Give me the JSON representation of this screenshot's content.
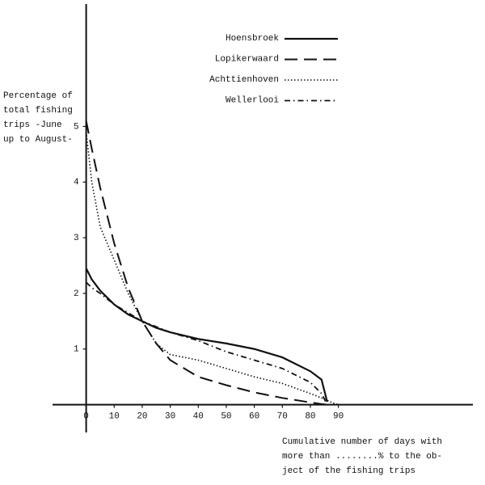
{
  "chart_data": {
    "type": "line",
    "y_label": [
      "Percentage of",
      "total fishing",
      "trips -June",
      "up to August-"
    ],
    "x_label": [
      "Cumulative  number of days with",
      "more than ........% to the ob-",
      "ject of the fishing trips"
    ],
    "x": [
      0,
      2,
      5,
      10,
      15,
      20,
      25,
      30,
      40,
      50,
      60,
      70,
      80,
      84,
      86,
      88,
      90
    ],
    "series": [
      {
        "name": "Hoensbroek",
        "color": "#111111",
        "style": "solid",
        "values": [
          2.45,
          2.25,
          2.05,
          1.8,
          1.62,
          1.5,
          1.38,
          1.3,
          1.18,
          1.1,
          1.0,
          0.85,
          0.6,
          0.45,
          0.05,
          null,
          null
        ]
      },
      {
        "name": "Lopikerwaard",
        "color": "#111111",
        "style": "dashed",
        "values": [
          5.1,
          4.6,
          3.9,
          2.9,
          2.1,
          1.5,
          1.1,
          0.8,
          0.5,
          0.35,
          0.22,
          0.12,
          0.04,
          0.01,
          0,
          null,
          null
        ]
      },
      {
        "name": "Achttienhoven",
        "color": "#111111",
        "style": "dotted",
        "values": [
          4.9,
          4.0,
          3.2,
          2.6,
          2.0,
          1.5,
          1.1,
          0.9,
          0.8,
          0.65,
          0.5,
          0.38,
          0.2,
          0.12,
          0.08,
          0.03,
          0
        ]
      },
      {
        "name": "Wellerlooi",
        "color": "#111111",
        "style": "dashdot",
        "values": [
          2.2,
          2.1,
          2.0,
          1.8,
          1.65,
          1.5,
          1.4,
          1.3,
          1.15,
          0.95,
          0.8,
          0.65,
          0.4,
          0.2,
          0,
          null,
          null
        ]
      }
    ],
    "xlim": [
      -12,
      138
    ],
    "ylim": [
      -0.5,
      7.2
    ],
    "xticks": [
      0,
      10,
      20,
      30,
      40,
      50,
      60,
      70,
      80,
      90
    ],
    "yticks": [
      1,
      2,
      3,
      4,
      5
    ],
    "legend": "upper right"
  }
}
